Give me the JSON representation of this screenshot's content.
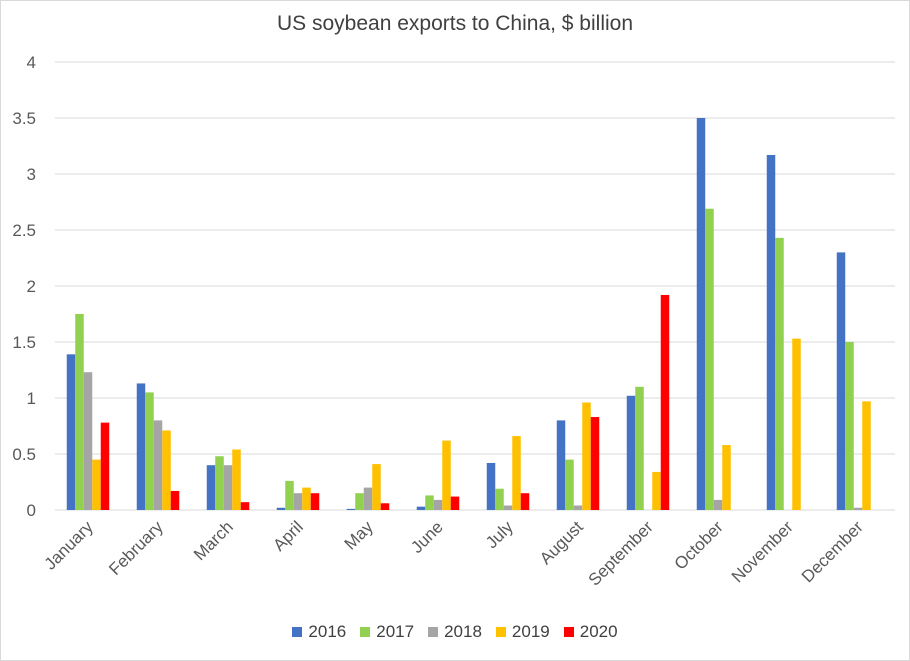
{
  "chart_data": {
    "type": "bar",
    "title": "US soybean exports to China, $ billion",
    "categories": [
      "January",
      "February",
      "March",
      "April",
      "May",
      "June",
      "July",
      "August",
      "September",
      "October",
      "November",
      "December"
    ],
    "series": [
      {
        "name": "2016",
        "color": "#4472c4",
        "values": [
          1.39,
          1.13,
          0.4,
          0.02,
          0.01,
          0.03,
          0.42,
          0.8,
          1.02,
          3.5,
          3.17,
          2.3
        ]
      },
      {
        "name": "2017",
        "color": "#92d050",
        "values": [
          1.75,
          1.05,
          0.48,
          0.26,
          0.15,
          0.13,
          0.19,
          0.45,
          1.1,
          2.69,
          2.43,
          1.5
        ]
      },
      {
        "name": "2018",
        "color": "#a5a5a5",
        "values": [
          1.23,
          0.8,
          0.4,
          0.15,
          0.2,
          0.09,
          0.04,
          0.04,
          0.0,
          0.09,
          0.0,
          0.02
        ]
      },
      {
        "name": "2019",
        "color": "#ffc000",
        "values": [
          0.45,
          0.71,
          0.54,
          0.2,
          0.41,
          0.62,
          0.66,
          0.96,
          0.34,
          0.58,
          1.53,
          0.97
        ]
      },
      {
        "name": "2020",
        "color": "#ff0000",
        "values": [
          0.78,
          0.17,
          0.07,
          0.15,
          0.06,
          0.12,
          0.15,
          0.83,
          1.92,
          0.0,
          0.0,
          0.0
        ]
      }
    ],
    "ylim": [
      0,
      4
    ],
    "yticks": [
      "0",
      "0.5",
      "1",
      "1.5",
      "2",
      "2.5",
      "3",
      "3.5",
      "4"
    ],
    "grid": true,
    "legend_position": "bottom"
  }
}
